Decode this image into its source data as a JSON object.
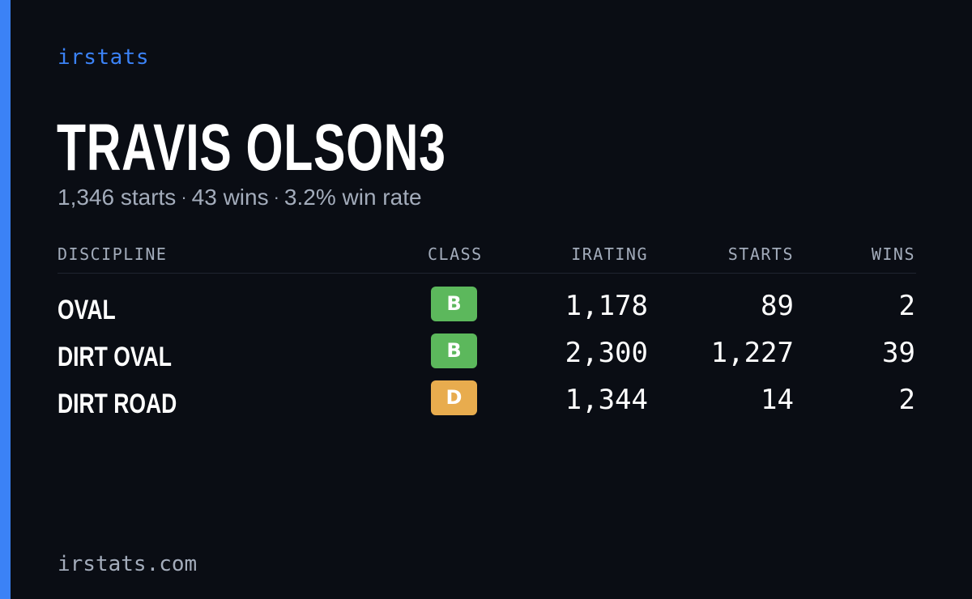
{
  "brand": "irstats",
  "player": {
    "name": "TRAVIS OLSON3",
    "summary": {
      "starts": "1,346 starts",
      "wins": "43 wins",
      "win_rate": "3.2% win rate",
      "separator": "·"
    }
  },
  "table": {
    "headers": {
      "discipline": "DISCIPLINE",
      "class": "CLASS",
      "irating": "IRATING",
      "starts": "STARTS",
      "wins": "WINS"
    },
    "rows": [
      {
        "discipline": "OVAL",
        "class": "B",
        "class_color": "#5cb85c",
        "irating": "1,178",
        "starts": "89",
        "wins": "2"
      },
      {
        "discipline": "DIRT OVAL",
        "class": "B",
        "class_color": "#5cb85c",
        "irating": "2,300",
        "starts": "1,227",
        "wins": "39"
      },
      {
        "discipline": "DIRT ROAD",
        "class": "D",
        "class_color": "#e8ac4e",
        "irating": "1,344",
        "starts": "14",
        "wins": "2"
      }
    ]
  },
  "footer": {
    "domain": "irstats.com"
  },
  "colors": {
    "background": "#0a0d14",
    "accent": "#3b82f6",
    "muted": "#a3acbb"
  }
}
